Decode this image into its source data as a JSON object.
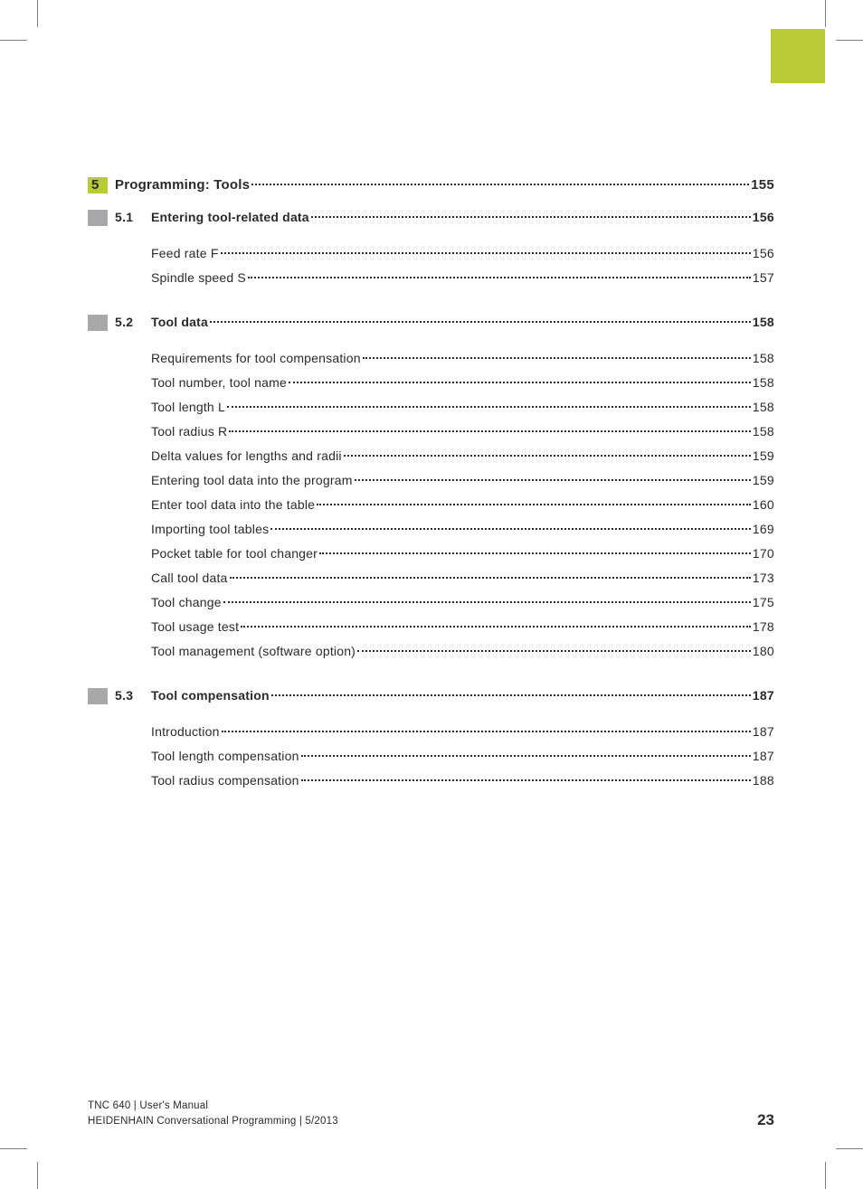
{
  "colors": {
    "accent": "#b8cb36",
    "section_marker": "#a8a8aa",
    "text": "#2a2a2a",
    "background": "#ffffff",
    "crop_mark": "#808080"
  },
  "typography": {
    "body_font": "Arial, Helvetica, sans-serif",
    "chapter_fontsize": 15,
    "section_fontsize": 14,
    "item_fontsize": 14,
    "footer_fontsize": 11.5,
    "page_num_fontsize": 17
  },
  "chapter": {
    "num": "5",
    "title": "Programming: Tools",
    "page": "155"
  },
  "sections": [
    {
      "num": "5.1",
      "title": "Entering tool-related data",
      "page": "156",
      "items": [
        {
          "title": "Feed rate F",
          "page": "156"
        },
        {
          "title": "Spindle speed S",
          "page": "157"
        }
      ]
    },
    {
      "num": "5.2",
      "title": "Tool data",
      "page": "158",
      "items": [
        {
          "title": "Requirements for tool compensation",
          "page": "158"
        },
        {
          "title": "Tool number, tool name",
          "page": "158"
        },
        {
          "title": "Tool length L",
          "page": "158"
        },
        {
          "title": "Tool radius R",
          "page": "158"
        },
        {
          "title": "Delta values for lengths and radii",
          "page": "159"
        },
        {
          "title": "Entering tool data into the program",
          "page": "159"
        },
        {
          "title": "Enter tool data into the table",
          "page": "160"
        },
        {
          "title": "Importing tool tables",
          "page": "169"
        },
        {
          "title": "Pocket table for tool changer",
          "page": "170"
        },
        {
          "title": "Call tool data",
          "page": "173"
        },
        {
          "title": "Tool change",
          "page": "175"
        },
        {
          "title": "Tool usage test",
          "page": "178"
        },
        {
          "title": "Tool management (software option)",
          "page": "180"
        }
      ]
    },
    {
      "num": "5.3",
      "title": "Tool compensation",
      "page": "187",
      "items": [
        {
          "title": "Introduction",
          "page": "187"
        },
        {
          "title": "Tool length compensation",
          "page": "187"
        },
        {
          "title": "Tool radius compensation",
          "page": "188"
        }
      ]
    }
  ],
  "footer": {
    "line1": "TNC 640 | User's Manual",
    "line2": "HEIDENHAIN Conversational Programming | 5/2013",
    "page_num": "23"
  }
}
